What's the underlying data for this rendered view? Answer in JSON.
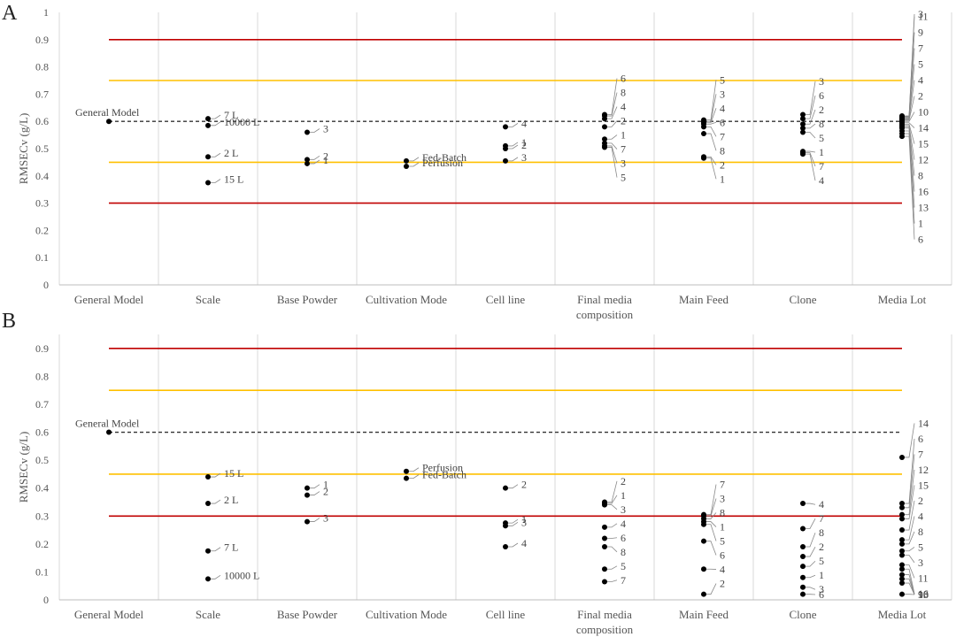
{
  "colors": {
    "red": "#c00000",
    "yellow": "#ffc000",
    "general": "#333333",
    "point": "#000000"
  },
  "chart_data": [
    {
      "panel": "A",
      "type": "scatter",
      "ylabel": "RMSECv (g/L)",
      "ylim": [
        0,
        1
      ],
      "yticks": [
        "0",
        "0.1",
        "0.2",
        "0.3",
        "0.4",
        "0.5",
        "0.6",
        "0.7",
        "0.8",
        "0.9",
        "1"
      ],
      "categories": [
        "General Model",
        "Scale",
        "Base Powder",
        "Cultivation Mode",
        "Cell line",
        "Final media composition",
        "Main Feed",
        "Clone",
        "Media Lot"
      ],
      "reference_lines": [
        {
          "kind": "red",
          "value": 0.9
        },
        {
          "kind": "yellow",
          "value": 0.75
        },
        {
          "kind": "general",
          "value": 0.6
        },
        {
          "kind": "yellow",
          "value": 0.45
        },
        {
          "kind": "red",
          "value": 0.3
        }
      ],
      "series": [
        {
          "category": "General Model",
          "points": [
            {
              "label": "General Model",
              "y": 0.6
            }
          ]
        },
        {
          "category": "Scale",
          "points": [
            {
              "label": "7 L",
              "y": 0.61
            },
            {
              "label": "10000 L",
              "y": 0.585
            },
            {
              "label": "2 L",
              "y": 0.47
            },
            {
              "label": "15 L",
              "y": 0.375
            }
          ]
        },
        {
          "category": "Base Powder",
          "points": [
            {
              "label": "3",
              "y": 0.56
            },
            {
              "label": "2",
              "y": 0.46
            },
            {
              "label": "1",
              "y": 0.445
            }
          ]
        },
        {
          "category": "Cultivation Mode",
          "points": [
            {
              "label": "Fed-Batch",
              "y": 0.455
            },
            {
              "label": "Perfusion",
              "y": 0.435
            }
          ]
        },
        {
          "category": "Cell line",
          "points": [
            {
              "label": "4",
              "y": 0.58
            },
            {
              "label": "1",
              "y": 0.51
            },
            {
              "label": "2",
              "y": 0.5
            },
            {
              "label": "3",
              "y": 0.455
            }
          ]
        },
        {
          "category": "Final media composition",
          "points": [
            {
              "label": "6",
              "y": 0.625
            },
            {
              "label": "8",
              "y": 0.62
            },
            {
              "label": "4",
              "y": 0.61
            },
            {
              "label": "2",
              "y": 0.58
            },
            {
              "label": "1",
              "y": 0.535
            },
            {
              "label": "7",
              "y": 0.52
            },
            {
              "label": "3",
              "y": 0.51
            },
            {
              "label": "5",
              "y": 0.505
            }
          ]
        },
        {
          "category": "Main Feed",
          "points": [
            {
              "label": "3",
              "y": 0.6
            },
            {
              "label": "5",
              "y": 0.605
            },
            {
              "label": "4",
              "y": 0.595
            },
            {
              "label": "6",
              "y": 0.59
            },
            {
              "label": "7",
              "y": 0.58
            },
            {
              "label": "8",
              "y": 0.555
            },
            {
              "label": "2",
              "y": 0.47
            },
            {
              "label": "1",
              "y": 0.465
            }
          ]
        },
        {
          "category": "Clone",
          "points": [
            {
              "label": "3",
              "y": 0.625
            },
            {
              "label": "6",
              "y": 0.61
            },
            {
              "label": "2",
              "y": 0.59
            },
            {
              "label": "8",
              "y": 0.575
            },
            {
              "label": "5",
              "y": 0.56
            },
            {
              "label": "1",
              "y": 0.49
            },
            {
              "label": "7",
              "y": 0.485
            },
            {
              "label": "4",
              "y": 0.48
            }
          ]
        },
        {
          "category": "Media Lot",
          "points": [
            {
              "label": "3",
              "y": 0.62
            },
            {
              "label": "11",
              "y": 0.618
            },
            {
              "label": "9",
              "y": 0.615
            },
            {
              "label": "7",
              "y": 0.612
            },
            {
              "label": "5",
              "y": 0.61
            },
            {
              "label": "4",
              "y": 0.607
            },
            {
              "label": "2",
              "y": 0.604
            },
            {
              "label": "10",
              "y": 0.6
            },
            {
              "label": "14",
              "y": 0.595
            },
            {
              "label": "15",
              "y": 0.59
            },
            {
              "label": "12",
              "y": 0.585
            },
            {
              "label": "8",
              "y": 0.58
            },
            {
              "label": "16",
              "y": 0.575
            },
            {
              "label": "13",
              "y": 0.565
            },
            {
              "label": "1",
              "y": 0.555
            },
            {
              "label": "6",
              "y": 0.545
            }
          ]
        }
      ]
    },
    {
      "panel": "B",
      "type": "scatter",
      "ylabel": "RMSECv (g/L)",
      "ylim": [
        0,
        0.95
      ],
      "yticks": [
        "0",
        "0.1",
        "0.2",
        "0.3",
        "0.4",
        "0.5",
        "0.6",
        "0.7",
        "0.8",
        "0.9"
      ],
      "categories": [
        "General Model",
        "Scale",
        "Base Powder",
        "Cultivation Mode",
        "Cell line",
        "Final media composition",
        "Main Feed",
        "Clone",
        "Media Lot"
      ],
      "reference_lines": [
        {
          "kind": "red",
          "value": 0.9
        },
        {
          "kind": "yellow",
          "value": 0.75
        },
        {
          "kind": "general",
          "value": 0.6
        },
        {
          "kind": "yellow",
          "value": 0.45
        },
        {
          "kind": "red",
          "value": 0.3
        }
      ],
      "series": [
        {
          "category": "General Model",
          "points": [
            {
              "label": "General Model",
              "y": 0.6
            }
          ]
        },
        {
          "category": "Scale",
          "points": [
            {
              "label": "15 L",
              "y": 0.44
            },
            {
              "label": "2 L",
              "y": 0.345
            },
            {
              "label": "7 L",
              "y": 0.175
            },
            {
              "label": "10000 L",
              "y": 0.075
            }
          ]
        },
        {
          "category": "Base Powder",
          "points": [
            {
              "label": "1",
              "y": 0.4
            },
            {
              "label": "2",
              "y": 0.375
            },
            {
              "label": "3",
              "y": 0.28
            }
          ]
        },
        {
          "category": "Cultivation Mode",
          "points": [
            {
              "label": "Perfusion",
              "y": 0.46
            },
            {
              "label": "Fed-Batch",
              "y": 0.435
            }
          ]
        },
        {
          "category": "Cell line",
          "points": [
            {
              "label": "2",
              "y": 0.4
            },
            {
              "label": "1",
              "y": 0.275
            },
            {
              "label": "3",
              "y": 0.265
            },
            {
              "label": "4",
              "y": 0.19
            }
          ]
        },
        {
          "category": "Final media composition",
          "points": [
            {
              "label": "2",
              "y": 0.35
            },
            {
              "label": "1",
              "y": 0.345
            },
            {
              "label": "3",
              "y": 0.34
            },
            {
              "label": "4",
              "y": 0.26
            },
            {
              "label": "6",
              "y": 0.22
            },
            {
              "label": "8",
              "y": 0.19
            },
            {
              "label": "5",
              "y": 0.11
            },
            {
              "label": "7",
              "y": 0.065
            }
          ]
        },
        {
          "category": "Main Feed",
          "points": [
            {
              "label": "7",
              "y": 0.305
            },
            {
              "label": "3",
              "y": 0.3
            },
            {
              "label": "8",
              "y": 0.29
            },
            {
              "label": "1",
              "y": 0.28
            },
            {
              "label": "5",
              "y": 0.27
            },
            {
              "label": "6",
              "y": 0.21
            },
            {
              "label": "4",
              "y": 0.11
            },
            {
              "label": "2",
              "y": 0.02
            }
          ]
        },
        {
          "category": "Clone",
          "points": [
            {
              "label": "4",
              "y": 0.345
            },
            {
              "label": "7",
              "y": 0.255
            },
            {
              "label": "8",
              "y": 0.19
            },
            {
              "label": "2",
              "y": 0.155
            },
            {
              "label": "5",
              "y": 0.12
            },
            {
              "label": "1",
              "y": 0.08
            },
            {
              "label": "3",
              "y": 0.045
            },
            {
              "label": "6",
              "y": 0.02
            }
          ]
        },
        {
          "category": "Media Lot",
          "points": [
            {
              "label": "14",
              "y": 0.51
            },
            {
              "label": "6",
              "y": 0.345
            },
            {
              "label": "7",
              "y": 0.33
            },
            {
              "label": "12",
              "y": 0.305
            },
            {
              "label": "15",
              "y": 0.29
            },
            {
              "label": "2",
              "y": 0.25
            },
            {
              "label": "4",
              "y": 0.215
            },
            {
              "label": "8",
              "y": 0.2
            },
            {
              "label": "5",
              "y": 0.175
            },
            {
              "label": "3",
              "y": 0.16
            },
            {
              "label": "11",
              "y": 0.125
            },
            {
              "label": "16",
              "y": 0.11
            },
            {
              "label": "1",
              "y": 0.09
            },
            {
              "label": "10",
              "y": 0.075
            },
            {
              "label": "13",
              "y": 0.06
            },
            {
              "label": "9",
              "y": 0.02
            }
          ]
        }
      ]
    }
  ]
}
